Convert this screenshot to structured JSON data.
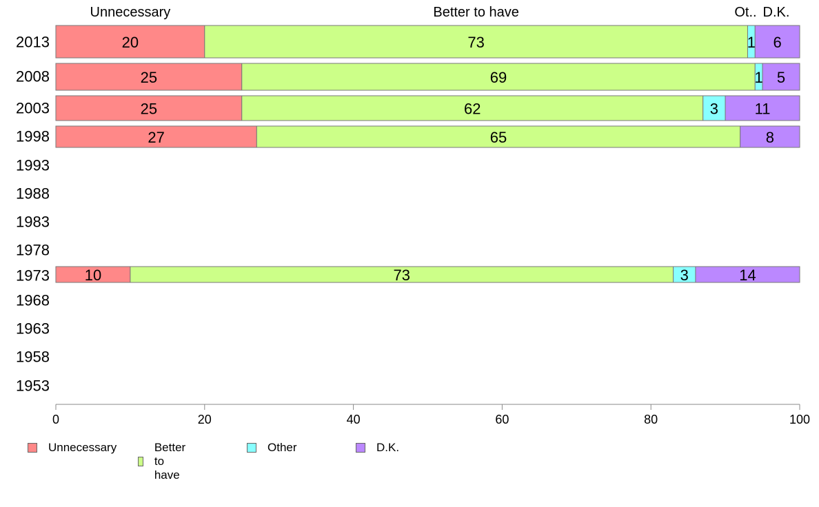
{
  "chart_data": {
    "type": "bar",
    "orientation": "horizontal",
    "stacked": true,
    "categories": [
      "2013",
      "2008",
      "2003",
      "1998",
      "1993",
      "1988",
      "1983",
      "1978",
      "1973",
      "1968",
      "1963",
      "1958",
      "1953"
    ],
    "series": [
      {
        "name": "Unnecessary",
        "color": "#ff8888",
        "values": [
          20,
          25,
          25,
          27,
          null,
          null,
          null,
          null,
          10,
          null,
          null,
          null,
          null
        ]
      },
      {
        "name": "Better to have",
        "color": "#ccff88",
        "values": [
          73,
          69,
          62,
          65,
          null,
          null,
          null,
          null,
          73,
          null,
          null,
          null,
          null
        ]
      },
      {
        "name": "Other",
        "color": "#88ffff",
        "values": [
          1,
          1,
          3,
          null,
          null,
          null,
          null,
          null,
          3,
          null,
          null,
          null,
          null
        ]
      },
      {
        "name": "D.K.",
        "color": "#bb88ff",
        "values": [
          6,
          5,
          11,
          8,
          null,
          null,
          null,
          null,
          14,
          null,
          null,
          null,
          null
        ]
      }
    ],
    "xlim": [
      0,
      100
    ],
    "xticks": [
      "0",
      "20",
      "40",
      "60",
      "80",
      "100"
    ],
    "top_labels": [
      "Unnecessary",
      "Better to have",
      "Ot..",
      "D.K."
    ],
    "legend_position": "bottom-left",
    "grid": false
  },
  "legend": [
    {
      "label": "Unnecessary",
      "color": "#ff8888"
    },
    {
      "label": "Better to have",
      "color": "#ccff88"
    },
    {
      "label": "Other",
      "color": "#88ffff"
    },
    {
      "label": "D.K.",
      "color": "#bb88ff"
    }
  ]
}
